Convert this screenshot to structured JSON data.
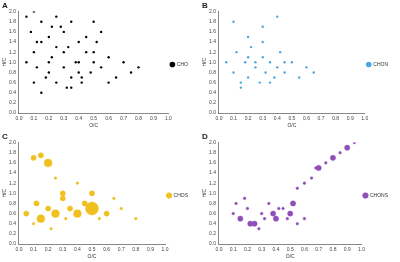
{
  "chart_data": [
    {
      "type": "scatter",
      "title": "A",
      "x_label": "O/C",
      "y_label": "H/C",
      "xlim": [
        0,
        1
      ],
      "xticks": [
        {
          "value": 0,
          "label": "0.0"
        },
        0.1,
        0.2,
        0.3,
        0.4,
        0.5,
        0.6,
        0.7,
        0.8,
        0.9,
        {
          "value": 1,
          "label": "1.0"
        }
      ],
      "ylim": [
        0,
        2
      ],
      "yticks": [
        {
          "value": 0,
          "label": "0.0"
        },
        0.2,
        0.4,
        0.6,
        0.8,
        {
          "value": 1,
          "label": "1.0"
        },
        1.2,
        1.4,
        1.6,
        1.8,
        {
          "value": 2,
          "label": "2.0"
        }
      ],
      "grid": false,
      "legend": "right",
      "series": [
        {
          "name": "CHO",
          "color": "#000000",
          "x": [
            0.05,
            0.08,
            0.1,
            0.12,
            0.15,
            0.18,
            0.2,
            0.22,
            0.25,
            0.28,
            0.3,
            0.33,
            0.35,
            0.38,
            0.4,
            0.42,
            0.45,
            0.48,
            0.5,
            0.55,
            0.6,
            0.65,
            0.7,
            0.75,
            0.8,
            0.05,
            0.1,
            0.15,
            0.2,
            0.25,
            0.3,
            0.35,
            0.4,
            0.45,
            0.5,
            0.55,
            0.6,
            0.1,
            0.2,
            0.3,
            0.4,
            0.5,
            0.15,
            0.25,
            0.35,
            0.12,
            0.22,
            0.32,
            0.42,
            0.52
          ],
          "values": [
            1.9,
            1.6,
            1.2,
            0.9,
            1.8,
            0.7,
            1.5,
            1.1,
            0.6,
            1.7,
            0.9,
            1.3,
            0.5,
            1.0,
            1.4,
            0.7,
            1.2,
            0.8,
            1.0,
            0.9,
            1.1,
            0.7,
            1.0,
            0.8,
            0.9,
            1.0,
            0.6,
            1.4,
            0.8,
            1.9,
            1.6,
            0.7,
            1.0,
            1.5,
            1.2,
            1.6,
            0.6,
            2.0,
            1.0,
            1.2,
            0.8,
            1.8,
            0.4,
            1.3,
            1.8,
            1.4,
            1.7,
            0.5,
            0.6,
            1.4
          ]
        }
      ]
    },
    {
      "type": "scatter",
      "title": "B",
      "x_label": "O/C",
      "y_label": "H/C",
      "xlim": [
        0,
        1
      ],
      "xticks": [
        {
          "value": 0,
          "label": "0.0"
        },
        0.1,
        0.2,
        0.3,
        0.4,
        0.5,
        0.6,
        0.7,
        0.8,
        0.9,
        {
          "value": 1,
          "label": "1.0"
        }
      ],
      "ylim": [
        0,
        2
      ],
      "yticks": [
        {
          "value": 0,
          "label": "0.0"
        },
        0.2,
        0.4,
        0.6,
        0.8,
        {
          "value": 1,
          "label": "1.0"
        },
        1.2,
        1.4,
        1.6,
        1.8,
        {
          "value": 2,
          "label": "2.0"
        }
      ],
      "grid": false,
      "legend": "right",
      "series": [
        {
          "name": "CHON",
          "color": "#4aa8e0",
          "x": [
            0.05,
            0.1,
            0.12,
            0.15,
            0.18,
            0.2,
            0.22,
            0.25,
            0.28,
            0.3,
            0.32,
            0.35,
            0.38,
            0.4,
            0.42,
            0.45,
            0.5,
            0.55,
            0.6,
            0.65,
            0.1,
            0.2,
            0.3,
            0.4,
            0.15,
            0.25,
            0.35,
            0.45,
            0.3,
            0.2
          ],
          "values": [
            1.0,
            0.8,
            1.2,
            0.6,
            1.0,
            0.7,
            1.3,
            0.9,
            0.6,
            1.1,
            0.8,
            1.0,
            0.7,
            0.9,
            1.2,
            0.8,
            1.0,
            0.7,
            0.9,
            0.8,
            1.8,
            1.5,
            1.4,
            1.9,
            0.5,
            1.0,
            0.6,
            1.0,
            1.7,
            1.1
          ]
        }
      ]
    },
    {
      "type": "bubble",
      "title": "C",
      "x_label": "O/C",
      "y_label": "H/C",
      "xlim": [
        0,
        1
      ],
      "xticks": [
        {
          "value": 0,
          "label": "0.0"
        },
        0.1,
        0.2,
        0.3,
        0.4,
        0.5,
        0.6,
        0.7,
        0.8,
        0.9,
        {
          "value": 1,
          "label": "1.0"
        }
      ],
      "ylim": [
        0,
        2
      ],
      "yticks": [
        {
          "value": 0,
          "label": "0.0"
        },
        0.2,
        0.4,
        0.6,
        0.8,
        {
          "value": 1,
          "label": "1.0"
        },
        1.2,
        1.4,
        1.6,
        1.8,
        {
          "value": 2,
          "label": "2.0"
        }
      ],
      "grid": false,
      "legend": "right",
      "series": [
        {
          "name": "CHOS",
          "color": "#f0c020",
          "x": [
            0.05,
            0.1,
            0.12,
            0.15,
            0.2,
            0.22,
            0.25,
            0.3,
            0.32,
            0.35,
            0.4,
            0.45,
            0.5,
            0.55,
            0.6,
            0.7,
            0.8,
            0.1,
            0.15,
            0.2,
            0.3,
            0.5,
            0.25,
            0.4,
            0.65
          ],
          "values": [
            0.6,
            0.4,
            0.8,
            0.5,
            0.7,
            0.3,
            0.6,
            0.9,
            0.5,
            0.7,
            0.6,
            0.8,
            0.7,
            0.5,
            0.6,
            0.7,
            0.5,
            1.7,
            1.75,
            1.6,
            1.0,
            1.0,
            1.3,
            1.2,
            0.9
          ],
          "sizes": [
            2,
            1,
            2,
            3,
            2,
            1,
            3,
            2,
            1,
            2,
            3,
            2,
            5,
            1,
            2,
            1,
            1,
            2,
            2,
            3,
            2,
            2,
            1,
            1,
            1
          ]
        }
      ]
    },
    {
      "type": "bubble",
      "title": "D",
      "x_label": "O/C",
      "y_label": "H/C",
      "xlim": [
        0,
        1
      ],
      "xticks": [
        {
          "value": 0,
          "label": "0.0"
        },
        0.1,
        0.2,
        0.3,
        0.4,
        0.5,
        0.6,
        0.7,
        0.8,
        0.9,
        {
          "value": 1,
          "label": "1.0"
        }
      ],
      "ylim": [
        0,
        2
      ],
      "yticks": [
        {
          "value": 0,
          "label": "0.0"
        },
        0.2,
        0.4,
        0.6,
        0.8,
        {
          "value": 1,
          "label": "1.0"
        },
        1.2,
        1.4,
        1.6,
        1.8,
        {
          "value": 2,
          "label": "2.0"
        }
      ],
      "grid": false,
      "legend": "right",
      "series": [
        {
          "name": "CHONS",
          "color": "#8e4fb8",
          "x": [
            0.1,
            0.15,
            0.2,
            0.25,
            0.3,
            0.35,
            0.4,
            0.45,
            0.5,
            0.55,
            0.6,
            0.12,
            0.22,
            0.32,
            0.42,
            0.52,
            0.18,
            0.28,
            0.38,
            0.48,
            0.6,
            0.65,
            0.7,
            0.75,
            0.8,
            0.85,
            0.9,
            0.95,
            0.55,
            0.68
          ],
          "values": [
            0.6,
            0.5,
            0.7,
            0.4,
            0.6,
            0.8,
            0.5,
            0.7,
            0.6,
            0.4,
            0.5,
            0.8,
            0.4,
            0.5,
            0.7,
            0.8,
            0.9,
            0.3,
            0.6,
            0.5,
            1.2,
            1.3,
            1.5,
            1.6,
            1.7,
            1.8,
            1.9,
            2.0,
            1.1,
            1.5
          ],
          "sizes": [
            1,
            2,
            1,
            2,
            1,
            1,
            2,
            1,
            2,
            1,
            1,
            1,
            2,
            1,
            1,
            2,
            1,
            1,
            2,
            1,
            1,
            1,
            2,
            1,
            2,
            1,
            2,
            1,
            1,
            1
          ]
        }
      ]
    }
  ]
}
